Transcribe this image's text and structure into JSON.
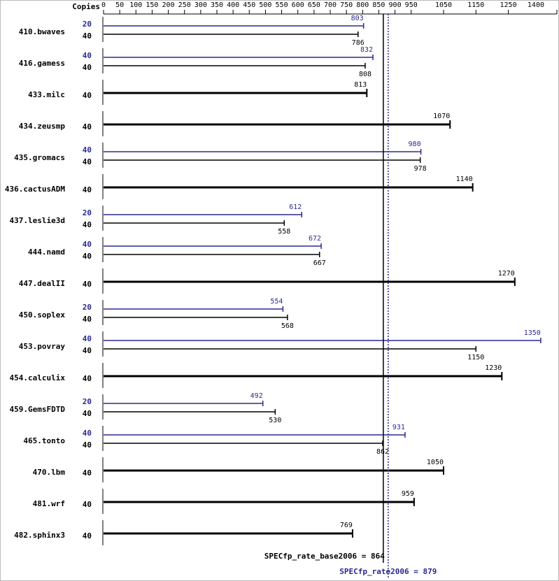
{
  "chart_data": {
    "type": "spec-bar",
    "header": "Copies",
    "xlim": [
      0,
      1400
    ],
    "xticks": [
      0,
      50,
      100,
      150,
      200,
      250,
      300,
      350,
      400,
      450,
      500,
      550,
      600,
      650,
      700,
      750,
      800,
      850,
      900,
      950,
      1050,
      1150,
      1250,
      1400
    ],
    "peak_color": "#2a2a92",
    "base_color": "#000000",
    "benchmarks": [
      {
        "label": "410.bwaves",
        "peak": {
          "copies": 20,
          "value": 803
        },
        "base": {
          "copies": 40,
          "value": 786
        }
      },
      {
        "label": "416.gamess",
        "peak": {
          "copies": 40,
          "value": 832
        },
        "base": {
          "copies": 40,
          "value": 808
        }
      },
      {
        "label": "433.milc",
        "base": {
          "copies": 40,
          "value": 813
        }
      },
      {
        "label": "434.zeusmp",
        "base": {
          "copies": 40,
          "value": 1070
        }
      },
      {
        "label": "435.gromacs",
        "peak": {
          "copies": 40,
          "value": 980
        },
        "base": {
          "copies": 40,
          "value": 978
        }
      },
      {
        "label": "436.cactusADM",
        "base": {
          "copies": 40,
          "value": 1140
        }
      },
      {
        "label": "437.leslie3d",
        "peak": {
          "copies": 20,
          "value": 612
        },
        "base": {
          "copies": 40,
          "value": 558
        }
      },
      {
        "label": "444.namd",
        "peak": {
          "copies": 40,
          "value": 672
        },
        "base": {
          "copies": 40,
          "value": 667
        }
      },
      {
        "label": "447.dealII",
        "base": {
          "copies": 40,
          "value": 1270
        }
      },
      {
        "label": "450.soplex",
        "peak": {
          "copies": 20,
          "value": 554
        },
        "base": {
          "copies": 40,
          "value": 568
        }
      },
      {
        "label": "453.povray",
        "peak": {
          "copies": 40,
          "value": 1350
        },
        "base": {
          "copies": 40,
          "value": 1150
        }
      },
      {
        "label": "454.calculix",
        "base": {
          "copies": 40,
          "value": 1230
        }
      },
      {
        "label": "459.GemsFDTD",
        "peak": {
          "copies": 20,
          "value": 492
        },
        "base": {
          "copies": 40,
          "value": 530
        }
      },
      {
        "label": "465.tonto",
        "peak": {
          "copies": 40,
          "value": 931
        },
        "base": {
          "copies": 40,
          "value": 862
        }
      },
      {
        "label": "470.lbm",
        "base": {
          "copies": 40,
          "value": 1050
        }
      },
      {
        "label": "481.wrf",
        "base": {
          "copies": 40,
          "value": 959
        }
      },
      {
        "label": "482.sphinx3",
        "base": {
          "copies": 40,
          "value": 769
        }
      }
    ],
    "base_summary": {
      "label": "SPECfp_rate_base2006 = 864",
      "value": 864
    },
    "peak_summary": {
      "label": "SPECfp_rate2006 = 879",
      "value": 879
    }
  }
}
